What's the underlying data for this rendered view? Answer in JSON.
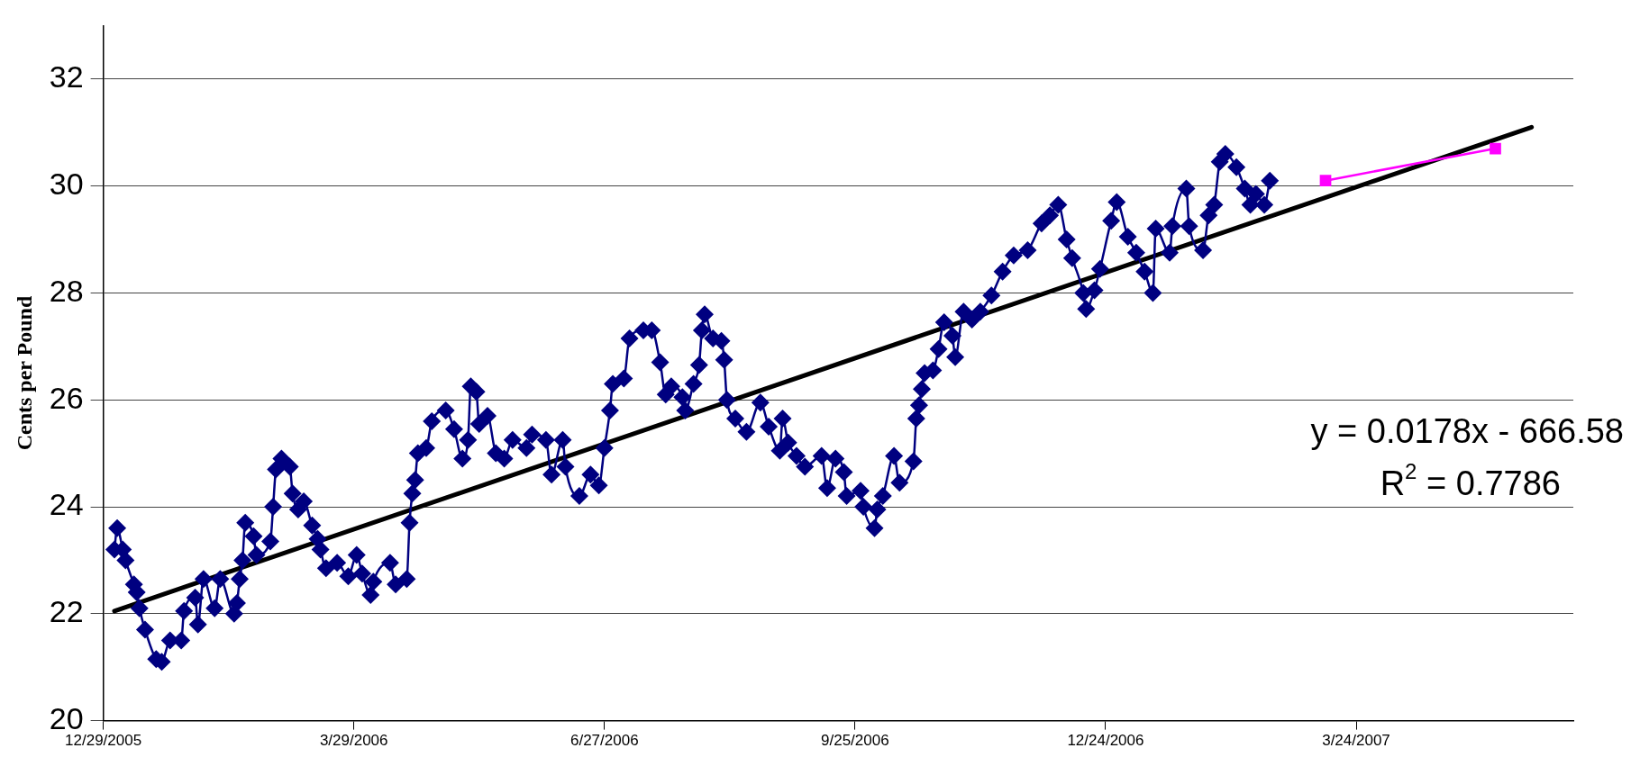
{
  "chart_data": {
    "type": "line",
    "ylabel": "Cents per Pound",
    "xlim": [
      "2005-12-29",
      "2007-06-10"
    ],
    "xticks": [
      {
        "value": "2005-12-29",
        "label": "12/29/2005"
      },
      {
        "value": "2006-03-29",
        "label": "3/29/2006"
      },
      {
        "value": "2006-06-27",
        "label": "6/27/2006"
      },
      {
        "value": "2006-09-25",
        "label": "9/25/2006"
      },
      {
        "value": "2006-12-24",
        "label": "12/24/2006"
      },
      {
        "value": "2007-03-24",
        "label": "3/24/2007"
      }
    ],
    "ylim": [
      20,
      33
    ],
    "yticks": [
      20,
      22,
      24,
      26,
      28,
      30,
      32
    ],
    "grid": "y",
    "annotations": [
      "y = 0.0178x - 666.58",
      "R$^{2}$ = 0.7786"
    ],
    "series": [
      {
        "marker": "diamond",
        "color": "#000080",
        "x": [
          "2006-01-02",
          "2006-01-03",
          "2006-01-05",
          "2006-01-06",
          "2006-01-09",
          "2006-01-10",
          "2006-01-11",
          "2006-01-13",
          "2006-01-17",
          "2006-01-19",
          "2006-01-22",
          "2006-01-26",
          "2006-01-27",
          "2006-01-31",
          "2006-02-01",
          "2006-02-03",
          "2006-02-07",
          "2006-02-09",
          "2006-02-14",
          "2006-02-15",
          "2006-02-16",
          "2006-02-17",
          "2006-02-18",
          "2006-02-21",
          "2006-02-22",
          "2006-02-27",
          "2006-02-28",
          "2006-03-01",
          "2006-03-03",
          "2006-03-06",
          "2006-03-07",
          "2006-03-09",
          "2006-03-11",
          "2006-03-14",
          "2006-03-16",
          "2006-03-17",
          "2006-03-19",
          "2006-03-23",
          "2006-03-27",
          "2006-03-30",
          "2006-04-01",
          "2006-04-04",
          "2006-04-05",
          "2006-04-11",
          "2006-04-13",
          "2006-04-17",
          "2006-04-18",
          "2006-04-19",
          "2006-04-20",
          "2006-04-21",
          "2006-04-24",
          "2006-04-26",
          "2006-05-01",
          "2006-05-04",
          "2006-05-07",
          "2006-05-09",
          "2006-05-10",
          "2006-05-12",
          "2006-05-13",
          "2006-05-16",
          "2006-05-19",
          "2006-05-22",
          "2006-05-25",
          "2006-05-30",
          "2006-06-01",
          "2006-06-06",
          "2006-06-08",
          "2006-06-12",
          "2006-06-13",
          "2006-06-18",
          "2006-06-22",
          "2006-06-25",
          "2006-06-27",
          "2006-06-29",
          "2006-06-30",
          "2006-07-04",
          "2006-07-06",
          "2006-07-11",
          "2006-07-14",
          "2006-07-17",
          "2006-07-19",
          "2006-07-21",
          "2006-07-25",
          "2006-07-26",
          "2006-07-29",
          "2006-07-31",
          "2006-08-01",
          "2006-08-02",
          "2006-08-05",
          "2006-08-08",
          "2006-08-09",
          "2006-08-10",
          "2006-08-13",
          "2006-08-17",
          "2006-08-22",
          "2006-08-25",
          "2006-08-29",
          "2006-08-30",
          "2006-09-01",
          "2006-09-04",
          "2006-09-07",
          "2006-09-13",
          "2006-09-15",
          "2006-09-18",
          "2006-09-21",
          "2006-09-22",
          "2006-09-27",
          "2006-09-28",
          "2006-10-02",
          "2006-10-03",
          "2006-10-05",
          "2006-10-09",
          "2006-10-11",
          "2006-10-16",
          "2006-10-17",
          "2006-10-18",
          "2006-10-19",
          "2006-10-20",
          "2006-10-23",
          "2006-10-25",
          "2006-10-27",
          "2006-10-30",
          "2006-10-31",
          "2006-11-03",
          "2006-11-06",
          "2006-11-09",
          "2006-11-13",
          "2006-11-17",
          "2006-11-21",
          "2006-11-26",
          "2006-12-01",
          "2006-12-04",
          "2006-12-07",
          "2006-12-10",
          "2006-12-12",
          "2006-12-16",
          "2006-12-17",
          "2006-12-20",
          "2006-12-22",
          "2006-12-26",
          "2006-12-28",
          "2007-01-01",
          "2007-01-04",
          "2007-01-07",
          "2007-01-10",
          "2007-01-11",
          "2007-01-16",
          "2007-01-17",
          "2007-01-22",
          "2007-01-23",
          "2007-01-28",
          "2007-01-30",
          "2007-02-01",
          "2007-02-03",
          "2007-02-05",
          "2007-02-09",
          "2007-02-12",
          "2007-02-14",
          "2007-02-16",
          "2007-02-19",
          "2007-02-21"
        ],
        "values": [
          23.2,
          23.6,
          23.2,
          23.0,
          22.55,
          22.4,
          22.1,
          21.7,
          21.15,
          21.1,
          21.5,
          21.5,
          22.05,
          22.3,
          21.8,
          22.65,
          22.1,
          22.65,
          22.0,
          22.2,
          22.65,
          23.0,
          23.7,
          23.45,
          23.1,
          23.35,
          24.0,
          24.7,
          24.9,
          24.75,
          24.25,
          23.95,
          24.1,
          23.65,
          23.4,
          23.2,
          22.85,
          22.95,
          22.7,
          23.1,
          22.75,
          22.35,
          22.6,
          22.95,
          22.55,
          22.65,
          23.7,
          24.25,
          24.5,
          25.0,
          25.1,
          25.6,
          25.8,
          25.45,
          24.9,
          25.25,
          26.25,
          26.15,
          25.55,
          25.7,
          25.0,
          24.9,
          25.25,
          25.1,
          25.35,
          25.25,
          24.6,
          25.25,
          24.75,
          24.2,
          24.6,
          24.4,
          25.1,
          25.8,
          26.3,
          26.4,
          27.15,
          27.3,
          27.3,
          26.7,
          26.1,
          26.25,
          26.05,
          25.8,
          26.3,
          26.65,
          27.3,
          27.6,
          27.15,
          27.1,
          26.75,
          26.0,
          25.65,
          25.4,
          25.95,
          25.5,
          25.05,
          25.65,
          25.2,
          24.95,
          24.75,
          24.95,
          24.35,
          24.9,
          24.65,
          24.2,
          24.3,
          24.0,
          23.6,
          23.95,
          24.2,
          24.95,
          24.45,
          24.85,
          25.65,
          25.9,
          26.2,
          26.5,
          26.55,
          26.95,
          27.45,
          27.2,
          26.8,
          27.65,
          27.5,
          27.65,
          27.95,
          28.4,
          28.7,
          28.8,
          29.3,
          29.45,
          29.65,
          29.0,
          28.65,
          28.0,
          27.7,
          28.05,
          28.45,
          29.35,
          29.7,
          29.05,
          28.75,
          28.4,
          28.0,
          29.2,
          28.75,
          29.25,
          29.95,
          29.25,
          28.8,
          29.45,
          29.65,
          30.45,
          30.6,
          30.35,
          29.95,
          29.65,
          29.85,
          29.65,
          30.1
        ]
      },
      {
        "marker": "square",
        "color": "#ff00ff",
        "x": [
          "2007-03-13",
          "2007-05-13"
        ],
        "values": [
          30.1,
          30.7
        ]
      },
      {
        "type": "line",
        "marker": "none",
        "color": "#000000",
        "x": [
          "2006-01-02",
          "2007-05-26"
        ],
        "values": [
          22.05,
          31.1
        ]
      }
    ]
  }
}
